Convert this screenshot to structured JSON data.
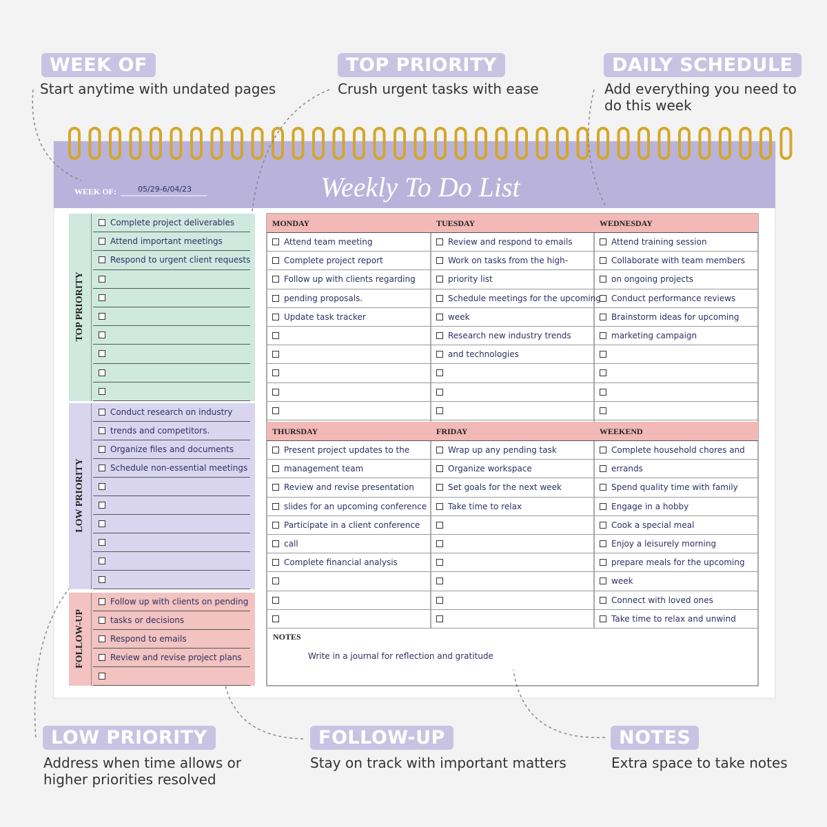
{
  "callouts": [
    {
      "label": "WEEK OF",
      "text": "Start anytime with undated pages"
    },
    {
      "label": "TOP PRIORITY",
      "text": "Crush urgent tasks with ease"
    },
    {
      "label": "DAILY SCHEDULE",
      "text": "Add everything you need to do this week"
    },
    {
      "label": "LOW PRIORITY",
      "text": "Address when time allows or higher priorities resolved"
    },
    {
      "label": "FOLLOW-UP",
      "text": "Stay on track with important matters"
    },
    {
      "label": "NOTES",
      "text": "Extra space to take notes"
    }
  ],
  "planner": {
    "title": "Weekly To Do List",
    "week_of_label": "WEEK OF:",
    "week_of": "05/29-6/04/23",
    "sections": [
      {
        "label": "TOP PRIORITY",
        "items": [
          "Complete project deliverables",
          "Attend important meetings",
          "Respond to urgent client requests"
        ]
      },
      {
        "label": "LOW PRIORITY",
        "items": [
          "Conduct research on industry",
          "trends and competitors.",
          "Organize files and documents",
          "Schedule non-essential meetings"
        ]
      },
      {
        "label": "FOLLOW-UP",
        "items": [
          "Follow up with clients on pending",
          "tasks or decisions",
          "Respond to emails",
          "Review and revise project plans"
        ]
      }
    ],
    "days": [
      {
        "name": "MONDAY",
        "items": [
          "Attend team meeting",
          "Complete project report",
          "Follow up with clients regarding",
          "pending proposals.",
          "Update task tracker"
        ]
      },
      {
        "name": "TUESDAY",
        "items": [
          "Review and respond to emails",
          "Work on tasks from the high-",
          "priority list",
          "Schedule meetings for the upcoming",
          "week",
          "Research new industry trends",
          "and technologies"
        ]
      },
      {
        "name": "WEDNESDAY",
        "items": [
          "Attend training session",
          "Collaborate with team members",
          "on ongoing projects",
          "Conduct performance reviews",
          "Brainstorm ideas for upcoming",
          "marketing campaign"
        ]
      },
      {
        "name": "THURSDAY",
        "items": [
          "Present project updates to the",
          "management team",
          "Review and revise presentation",
          "slides for an upcoming conference",
          "Participate in a client conference",
          "call",
          "Complete financial analysis"
        ]
      },
      {
        "name": "FRIDAY",
        "items": [
          "Wrap up any pending task",
          "Organize workspace",
          "Set goals for the next week",
          "Take time to relax"
        ]
      },
      {
        "name": "WEEKEND",
        "items": [
          "Complete household chores and",
          "errands",
          "Spend quality time with family",
          "Engage in a hobby",
          "Cook a special meal",
          "Enjoy a leisurely morning",
          "prepare meals for the upcoming",
          "week",
          "Connect with loved ones",
          "Take time to relax and unwind"
        ]
      }
    ],
    "notes": {
      "label": "NOTES",
      "text": "Write in a journal for reflection and gratitude"
    }
  }
}
